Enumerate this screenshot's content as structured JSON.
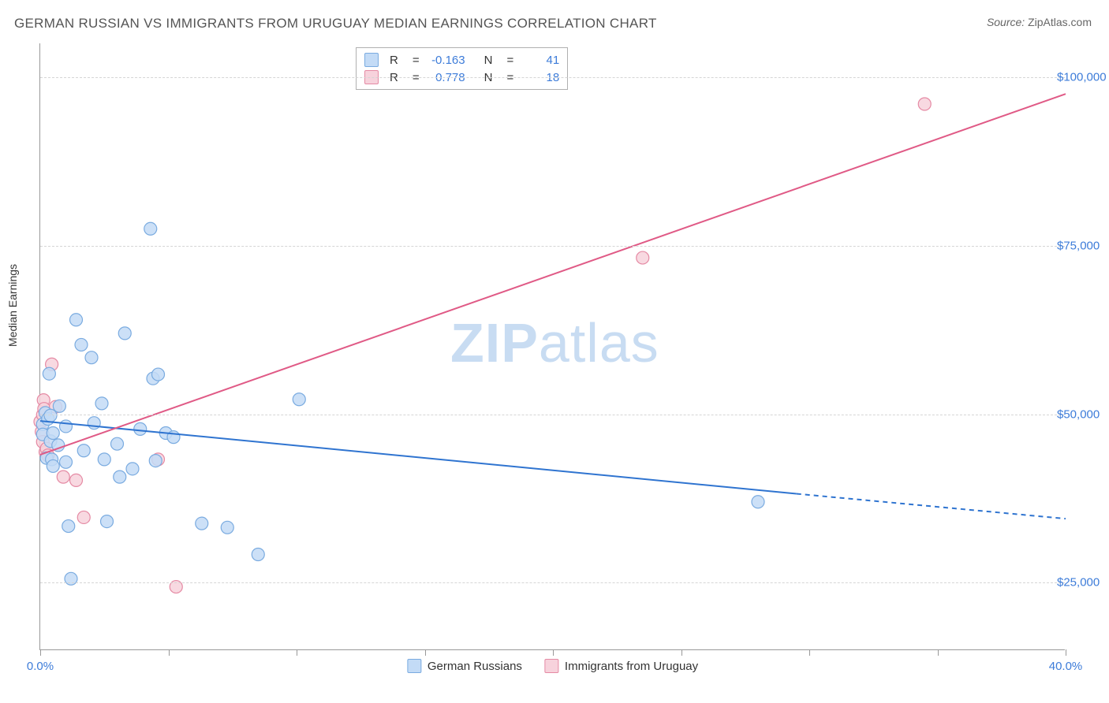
{
  "title": "GERMAN RUSSIAN VS IMMIGRANTS FROM URUGUAY MEDIAN EARNINGS CORRELATION CHART",
  "source": {
    "label": "Source:",
    "value": "ZipAtlas.com"
  },
  "y_axis_label": "Median Earnings",
  "watermark": {
    "bold": "ZIP",
    "rest": "atlas"
  },
  "chart": {
    "type": "scatter",
    "x_domain": [
      0,
      40
    ],
    "y_domain": [
      15000,
      105000
    ],
    "x_ticks": [
      0,
      5,
      10,
      15,
      20,
      25,
      30,
      35,
      40
    ],
    "x_tick_labels": {
      "0": "0.0%",
      "40": "40.0%"
    },
    "y_gridlines": [
      25000,
      50000,
      75000,
      100000
    ],
    "y_tick_labels": {
      "25000": "$25,000",
      "50000": "$50,000",
      "75000": "$75,000",
      "100000": "$100,000"
    },
    "background_color": "#ffffff",
    "grid_color": "#d5d5d5",
    "axis_color": "#999999",
    "marker_radius": 8,
    "marker_stroke_width": 1.2,
    "line_width": 2,
    "dashed_pattern": "6,5"
  },
  "series": [
    {
      "name": "German Russians",
      "fill_color": "#c3dbf6",
      "stroke_color": "#7aabe0",
      "line_color": "#2f74d0",
      "R": "-0.163",
      "N": "41",
      "trend": {
        "x0": 0,
        "y0": 49000,
        "x_solid_end": 29.5,
        "y_solid_end": 38200,
        "x1": 40,
        "y1": 34500
      },
      "points": [
        [
          0.1,
          48500
        ],
        [
          0.1,
          47000
        ],
        [
          0.2,
          50200
        ],
        [
          0.25,
          43500
        ],
        [
          0.3,
          49300
        ],
        [
          0.35,
          56000
        ],
        [
          0.4,
          46000
        ],
        [
          0.4,
          49800
        ],
        [
          0.45,
          43300
        ],
        [
          0.5,
          47200
        ],
        [
          0.5,
          42300
        ],
        [
          0.7,
          45400
        ],
        [
          0.75,
          51200
        ],
        [
          1.0,
          48200
        ],
        [
          1.0,
          42900
        ],
        [
          1.1,
          33400
        ],
        [
          1.2,
          25600
        ],
        [
          1.4,
          64000
        ],
        [
          1.6,
          60300
        ],
        [
          1.7,
          44600
        ],
        [
          2.0,
          58400
        ],
        [
          2.1,
          48700
        ],
        [
          2.4,
          51600
        ],
        [
          2.5,
          43300
        ],
        [
          2.6,
          34100
        ],
        [
          3.0,
          45600
        ],
        [
          3.1,
          40700
        ],
        [
          3.3,
          62000
        ],
        [
          3.6,
          41900
        ],
        [
          3.9,
          47800
        ],
        [
          4.3,
          77500
        ],
        [
          4.4,
          55300
        ],
        [
          4.5,
          43100
        ],
        [
          4.6,
          55900
        ],
        [
          4.9,
          47200
        ],
        [
          5.2,
          46600
        ],
        [
          6.3,
          33800
        ],
        [
          7.3,
          33200
        ],
        [
          8.5,
          29200
        ],
        [
          10.1,
          52200
        ],
        [
          28.0,
          37000
        ]
      ]
    },
    {
      "name": "Immigrants from Uruguay",
      "fill_color": "#f7d2dc",
      "stroke_color": "#e58aa4",
      "line_color": "#e05a86",
      "R": "0.778",
      "N": "18",
      "trend": {
        "x0": 0,
        "y0": 44000,
        "x_solid_end": 40,
        "y_solid_end": 97500,
        "x1": 40,
        "y1": 97500
      },
      "points": [
        [
          0.0,
          48900
        ],
        [
          0.05,
          47400
        ],
        [
          0.1,
          49900
        ],
        [
          0.1,
          45900
        ],
        [
          0.13,
          52100
        ],
        [
          0.15,
          50800
        ],
        [
          0.2,
          44400
        ],
        [
          0.25,
          44900
        ],
        [
          0.3,
          43900
        ],
        [
          0.45,
          57400
        ],
        [
          0.6,
          51100
        ],
        [
          0.9,
          40700
        ],
        [
          1.4,
          40200
        ],
        [
          1.7,
          34700
        ],
        [
          4.6,
          43300
        ],
        [
          5.3,
          24400
        ],
        [
          23.5,
          73200
        ],
        [
          34.5,
          96000
        ]
      ]
    }
  ],
  "legend_top": {
    "R_label": "R",
    "N_label": "N",
    "equals": "="
  },
  "legend_bottom": [
    {
      "label": "German Russians",
      "series_index": 0
    },
    {
      "label": "Immigrants from Uruguay",
      "series_index": 1
    }
  ]
}
